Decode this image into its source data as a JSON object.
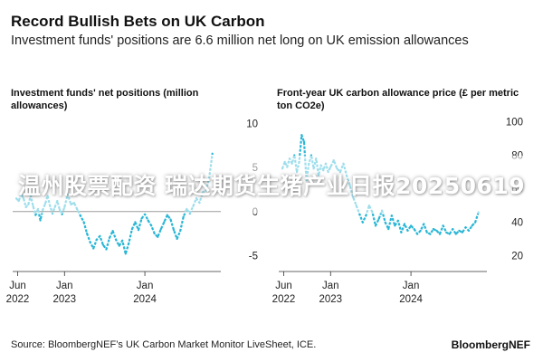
{
  "header": {
    "title": "Record Bullish Bets on UK Carbon",
    "subtitle": "Investment funds' positions are 6.6 million net long on UK emission allowances"
  },
  "watermark": "温州股票配资 瑞达期货生猪产业日报20250619",
  "footer": {
    "source": "Source: BloombergNEF’s UK Carbon Market Monitor LiveSheet, ICE.",
    "brand": "BloombergNEF"
  },
  "colors": {
    "series": "#29b6d6",
    "zero_line": "#222222",
    "axis": "#333333"
  },
  "chart_data": [
    {
      "type": "line",
      "title": "Investment funds' net positions (million allowances)",
      "ylim": [
        -6,
        11
      ],
      "yticks": [
        10,
        5,
        0,
        -5
      ],
      "xlim": [
        2022.4,
        2024.9
      ],
      "xtick_positions": [
        2022.4167,
        2023.0,
        2024.0
      ],
      "xtick_labels": [
        [
          "Jun",
          "2022"
        ],
        [
          "Jan",
          "2023"
        ],
        [
          "Jan",
          "2024"
        ]
      ],
      "zero_line": true,
      "series": [
        {
          "x": [
            2022.4,
            2022.43,
            2022.46,
            2022.49,
            2022.52,
            2022.55,
            2022.58,
            2022.61,
            2022.64,
            2022.67,
            2022.7,
            2022.73,
            2022.76,
            2022.79,
            2022.82,
            2022.85,
            2022.88,
            2022.91,
            2022.94,
            2022.97,
            2023.0,
            2023.04,
            2023.08,
            2023.12,
            2023.16,
            2023.2,
            2023.24,
            2023.28,
            2023.32,
            2023.36,
            2023.4,
            2023.44,
            2023.48,
            2023.52,
            2023.56,
            2023.6,
            2023.64,
            2023.68,
            2023.72,
            2023.76,
            2023.8,
            2023.84,
            2023.88,
            2023.92,
            2023.96,
            2024.0,
            2024.04,
            2024.08,
            2024.12,
            2024.16,
            2024.2,
            2024.24,
            2024.28,
            2024.32,
            2024.36,
            2024.4,
            2024.44,
            2024.48,
            2024.52,
            2024.56,
            2024.6,
            2024.64,
            2024.68,
            2024.72,
            2024.76,
            2024.8,
            2024.84
          ],
          "y": [
            1.5,
            1.2,
            2.0,
            1.5,
            0.5,
            0.8,
            1.8,
            0.6,
            -0.4,
            0.3,
            -1.0,
            0.2,
            0.9,
            1.8,
            0.6,
            -0.2,
            0.5,
            1.2,
            0.2,
            -0.3,
            0.5,
            2.0,
            0.8,
            1.0,
            0.2,
            -0.5,
            -1.2,
            -2.5,
            -3.5,
            -4.2,
            -3.2,
            -2.8,
            -3.8,
            -4.3,
            -3.0,
            -2.2,
            -3.2,
            -3.9,
            -3.3,
            -4.8,
            -3.6,
            -2.0,
            -1.2,
            -2.1,
            -0.8,
            -0.3,
            -1.0,
            -1.6,
            -2.5,
            -2.9,
            -2.0,
            -1.2,
            -0.4,
            -0.9,
            -2.1,
            -3.1,
            -2.2,
            -0.6,
            0.3,
            -0.2,
            0.6,
            1.5,
            1.0,
            2.2,
            2.4,
            3.8,
            6.6
          ]
        }
      ]
    },
    {
      "type": "line",
      "title": "Front-year UK carbon allowance price (£ per metric ton CO2e)",
      "ylim": [
        15,
        104
      ],
      "yticks": [
        100,
        80,
        60,
        40,
        20
      ],
      "xlim": [
        2022.4,
        2024.9
      ],
      "xtick_positions": [
        2022.4167,
        2023.0,
        2024.0
      ],
      "xtick_labels": [
        [
          "Jun",
          "2022"
        ],
        [
          "Jan",
          "2023"
        ],
        [
          "Jan",
          "2024"
        ]
      ],
      "zero_line": false,
      "series": [
        {
          "x": [
            2022.4,
            2022.43,
            2022.46,
            2022.49,
            2022.52,
            2022.55,
            2022.58,
            2022.61,
            2022.64,
            2022.67,
            2022.7,
            2022.73,
            2022.76,
            2022.79,
            2022.82,
            2022.85,
            2022.88,
            2022.91,
            2022.94,
            2022.97,
            2023.0,
            2023.04,
            2023.08,
            2023.12,
            2023.16,
            2023.2,
            2023.24,
            2023.28,
            2023.32,
            2023.36,
            2023.4,
            2023.44,
            2023.48,
            2023.52,
            2023.56,
            2023.6,
            2023.64,
            2023.68,
            2023.72,
            2023.76,
            2023.8,
            2023.84,
            2023.88,
            2023.92,
            2023.96,
            2024.0,
            2024.04,
            2024.08,
            2024.12,
            2024.16,
            2024.2,
            2024.24,
            2024.28,
            2024.32,
            2024.36,
            2024.4,
            2024.44,
            2024.48,
            2024.52,
            2024.56,
            2024.6,
            2024.64,
            2024.68,
            2024.72,
            2024.76,
            2024.8,
            2024.84
          ],
          "y": [
            72,
            76,
            73,
            78,
            75,
            80,
            70,
            76,
            92,
            88,
            65,
            75,
            80,
            72,
            78,
            68,
            74,
            71,
            75,
            70,
            73,
            77,
            72,
            70,
            75,
            68,
            62,
            55,
            50,
            45,
            40,
            44,
            50,
            46,
            38,
            42,
            47,
            40,
            36,
            44,
            38,
            41,
            34,
            39,
            35,
            38,
            36,
            33,
            35,
            39,
            34,
            33,
            36,
            35,
            33,
            38,
            34,
            33,
            36,
            33,
            35,
            34,
            37,
            35,
            38,
            40,
            46
          ]
        }
      ]
    }
  ]
}
